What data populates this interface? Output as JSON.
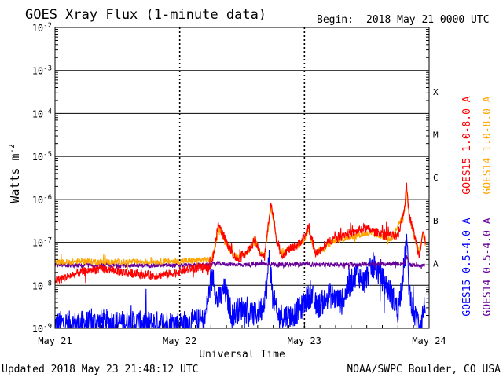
{
  "header": {
    "title": "GOES Xray Flux (1-minute data)",
    "begin_label": "Begin:",
    "begin_value": "2018 May 21 0000 UTC"
  },
  "footer": {
    "updated": "Updated 2018 May 23 21:48:12 UTC",
    "credit": "NOAA/SWPC Boulder, CO USA"
  },
  "chart_data": {
    "type": "line",
    "title": "GOES Xray Flux (1-minute data)",
    "xlabel": "Universal Time",
    "ylabel": "Watts m",
    "ylabel_exponent": "-2",
    "yscale": "log",
    "ylim": [
      1e-09,
      0.01
    ],
    "xlim_days": [
      0,
      3
    ],
    "grid": true,
    "x_ticks": [
      "May 21",
      "May 22",
      "May 23",
      "May 24"
    ],
    "y_ticks": [
      {
        "value": 0.01,
        "base": "10",
        "exp": "-2"
      },
      {
        "value": 0.001,
        "base": "10",
        "exp": "-3"
      },
      {
        "value": 0.0001,
        "base": "10",
        "exp": "-4"
      },
      {
        "value": 1e-05,
        "base": "10",
        "exp": "-5"
      },
      {
        "value": 1e-06,
        "base": "10",
        "exp": "-6"
      },
      {
        "value": 1e-07,
        "base": "10",
        "exp": "-7"
      },
      {
        "value": 1e-08,
        "base": "10",
        "exp": "-8"
      },
      {
        "value": 1e-09,
        "base": "10",
        "exp": "-9"
      }
    ],
    "flare_classes": [
      {
        "label": "X",
        "value": 0.00032
      },
      {
        "label": "M",
        "value": 3.2e-05
      },
      {
        "label": "C",
        "value": 3.2e-06
      },
      {
        "label": "B",
        "value": 3.2e-07
      },
      {
        "label": "A",
        "value": 3.2e-08
      }
    ],
    "legend_position": "right",
    "series": [
      {
        "name": "GOES15 1.0-8.0 A",
        "color": "#ff0000",
        "noise": 0.1,
        "points": [
          [
            0.0,
            1.3e-08
          ],
          [
            0.1,
            1.6e-08
          ],
          [
            0.2,
            2e-08
          ],
          [
            0.3,
            2.3e-08
          ],
          [
            0.4,
            2.4e-08
          ],
          [
            0.6,
            1.9e-08
          ],
          [
            0.8,
            1.7e-08
          ],
          [
            0.9,
            1.8e-08
          ],
          [
            1.0,
            2.1e-08
          ],
          [
            1.1,
            2.5e-08
          ],
          [
            1.2,
            2.6e-08
          ],
          [
            1.25,
            2.7e-08
          ],
          [
            1.28,
            7e-08
          ],
          [
            1.31,
            2.7e-07
          ],
          [
            1.34,
            1.7e-07
          ],
          [
            1.4,
            7e-08
          ],
          [
            1.46,
            4e-08
          ],
          [
            1.52,
            5.5e-08
          ],
          [
            1.56,
            7e-08
          ],
          [
            1.6,
            1.2e-07
          ],
          [
            1.64,
            6e-08
          ],
          [
            1.68,
            4.5e-08
          ],
          [
            1.71,
            2.5e-07
          ],
          [
            1.73,
            8.5e-07
          ],
          [
            1.75,
            4e-07
          ],
          [
            1.78,
            1e-07
          ],
          [
            1.82,
            5e-08
          ],
          [
            1.88,
            7e-08
          ],
          [
            1.94,
            8.5e-08
          ],
          [
            2.0,
            1.3e-07
          ],
          [
            2.03,
            2.4e-07
          ],
          [
            2.05,
            1.5e-07
          ],
          [
            2.09,
            5.5e-08
          ],
          [
            2.15,
            7e-08
          ],
          [
            2.2,
            1.1e-07
          ],
          [
            2.3,
            1.5e-07
          ],
          [
            2.4,
            1.7e-07
          ],
          [
            2.48,
            2.2e-07
          ],
          [
            2.55,
            1.8e-07
          ],
          [
            2.65,
            1.6e-07
          ],
          [
            2.75,
            1.3e-07
          ],
          [
            2.8,
            6e-07
          ],
          [
            2.82,
            2e-06
          ],
          [
            2.84,
            4.5e-07
          ],
          [
            2.88,
            1.6e-07
          ],
          [
            2.92,
            5e-08
          ],
          [
            2.95,
            1.8e-07
          ],
          [
            2.97,
            1e-07
          ]
        ]
      },
      {
        "name": "GOES14 1.0-8.0 A",
        "color": "#ffa500",
        "noise": 0.07,
        "points": [
          [
            0.0,
            3.4e-08
          ],
          [
            0.2,
            3.6e-08
          ],
          [
            0.4,
            3.5e-08
          ],
          [
            0.6,
            3.5e-08
          ],
          [
            0.8,
            3.6e-08
          ],
          [
            1.0,
            3.6e-08
          ],
          [
            1.1,
            3.8e-08
          ],
          [
            1.25,
            4e-08
          ],
          [
            1.28,
            6.5e-08
          ],
          [
            1.31,
            2.2e-07
          ],
          [
            1.34,
            1.5e-07
          ],
          [
            1.4,
            7e-08
          ],
          [
            1.46,
            4.5e-08
          ],
          [
            1.52,
            5.5e-08
          ],
          [
            1.56,
            6.5e-08
          ],
          [
            1.6,
            1e-07
          ],
          [
            1.64,
            6e-08
          ],
          [
            1.68,
            4.8e-08
          ],
          [
            1.71,
            2e-07
          ],
          [
            1.73,
            7e-07
          ],
          [
            1.75,
            3.5e-07
          ],
          [
            1.78,
            1e-07
          ],
          [
            1.82,
            5.5e-08
          ],
          [
            1.88,
            7e-08
          ],
          [
            1.94,
            8e-08
          ],
          [
            2.0,
            1.1e-07
          ],
          [
            2.03,
            2e-07
          ],
          [
            2.05,
            1.3e-07
          ],
          [
            2.09,
            6e-08
          ],
          [
            2.15,
            7e-08
          ],
          [
            2.2,
            1e-07
          ],
          [
            2.3,
            1.2e-07
          ],
          [
            2.4,
            1.4e-07
          ],
          [
            2.5,
            1.6e-07
          ],
          [
            2.6,
            1.4e-07
          ],
          [
            2.7,
            1.2e-07
          ],
          [
            2.8,
            5e-07
          ],
          [
            2.82,
            1.6e-06
          ],
          [
            2.84,
            4e-07
          ],
          [
            2.88,
            1.4e-07
          ],
          [
            2.92,
            6e-08
          ],
          [
            2.95,
            1.5e-07
          ],
          [
            2.97,
            9e-08
          ]
        ]
      },
      {
        "name": "GOES15 0.5-4.0 A",
        "color": "#0000ff",
        "noise": 0.3,
        "points": [
          [
            0.0,
            1.3e-09
          ],
          [
            0.2,
            1.3e-09
          ],
          [
            0.4,
            1.4e-09
          ],
          [
            0.6,
            1.3e-09
          ],
          [
            0.8,
            1.3e-09
          ],
          [
            1.0,
            1.3e-09
          ],
          [
            1.2,
            1.5e-09
          ],
          [
            1.24,
            8e-09
          ],
          [
            1.27,
            1.8e-08
          ],
          [
            1.3,
            4e-09
          ],
          [
            1.36,
            8e-09
          ],
          [
            1.42,
            2e-09
          ],
          [
            1.5,
            3e-09
          ],
          [
            1.6,
            2e-09
          ],
          [
            1.66,
            3e-09
          ],
          [
            1.7,
            1e-08
          ],
          [
            1.72,
            6e-08
          ],
          [
            1.74,
            8e-09
          ],
          [
            1.78,
            2e-09
          ],
          [
            1.9,
            2e-09
          ],
          [
            1.98,
            3e-09
          ],
          [
            2.02,
            5e-09
          ],
          [
            2.06,
            6e-09
          ],
          [
            2.1,
            3e-09
          ],
          [
            2.2,
            6e-09
          ],
          [
            2.3,
            4e-09
          ],
          [
            2.36,
            1e-08
          ],
          [
            2.42,
            2e-08
          ],
          [
            2.48,
            1.2e-08
          ],
          [
            2.55,
            3e-08
          ],
          [
            2.62,
            1.5e-08
          ],
          [
            2.7,
            6e-09
          ],
          [
            2.75,
            2.5e-09
          ],
          [
            2.8,
            3e-08
          ],
          [
            2.82,
            1.2e-07
          ],
          [
            2.84,
            8e-09
          ],
          [
            2.88,
            2e-09
          ],
          [
            2.93,
            1.3e-09
          ],
          [
            2.97,
            4e-09
          ]
        ]
      },
      {
        "name": "GOES14 0.5-4.0 A",
        "color": "#660099",
        "noise": 0.05,
        "points": [
          [
            0.0,
            2.9e-08
          ],
          [
            0.5,
            2.9e-08
          ],
          [
            1.0,
            2.9e-08
          ],
          [
            1.25,
            3e-08
          ],
          [
            1.31,
            3.2e-08
          ],
          [
            1.5,
            3e-08
          ],
          [
            1.72,
            3.2e-08
          ],
          [
            1.8,
            3e-08
          ],
          [
            2.0,
            3.1e-08
          ],
          [
            2.2,
            3e-08
          ],
          [
            2.5,
            3.1e-08
          ],
          [
            2.8,
            3.2e-08
          ],
          [
            2.82,
            4.5e-08
          ],
          [
            2.85,
            3e-08
          ],
          [
            2.97,
            2.9e-08
          ]
        ]
      }
    ]
  }
}
